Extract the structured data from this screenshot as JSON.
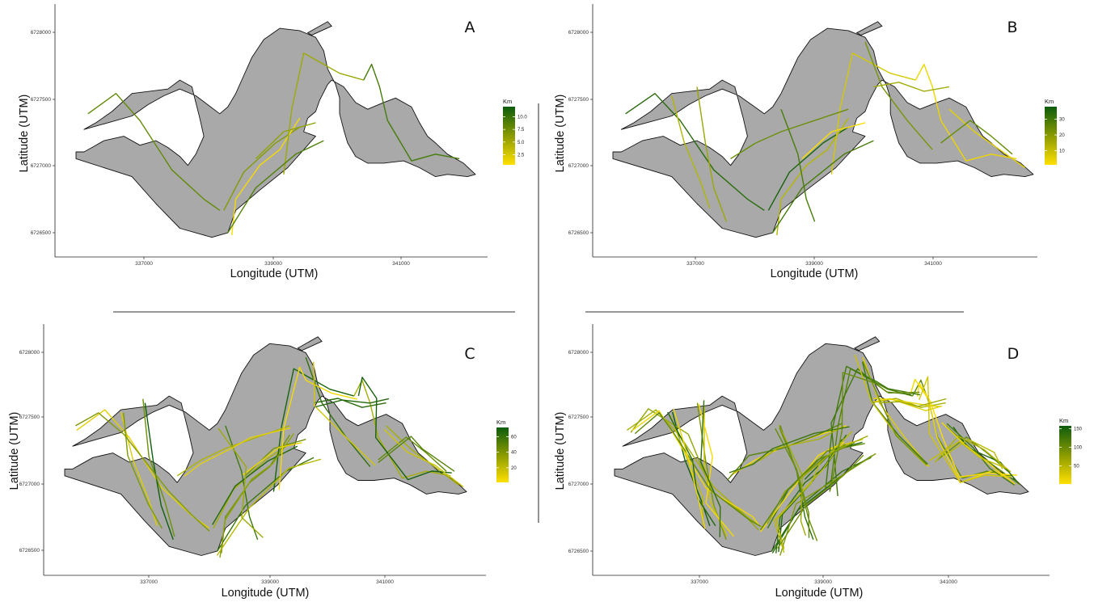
{
  "chart_data": [
    {
      "type": "line",
      "panel_label": "A",
      "xlabel": "Longitude (UTM)",
      "ylabel": "Latitude (UTM)",
      "x_ticks": [
        337000,
        339000,
        341000
      ],
      "y_ticks": [
        6726500,
        6727000,
        6727500,
        6728000
      ],
      "xlim": [
        335500,
        343600
      ],
      "ylim": [
        6726300,
        6728250
      ],
      "grid": false,
      "legend_position": "right",
      "legend": {
        "title": "Km",
        "ticks": [
          2.5,
          5.0,
          7.5,
          10.0
        ],
        "labels": [
          "2.5",
          "5.0",
          "7.5",
          "10.0"
        ],
        "min": 0.5,
        "max": 12.0
      },
      "color_low": "#ffe000",
      "color_high": "#0d5c0d"
    },
    {
      "type": "line",
      "panel_label": "B",
      "xlabel": "Longitude (UTM)",
      "ylabel": "Latitude (UTM)",
      "x_ticks": [
        337000,
        339000,
        341000
      ],
      "y_ticks": [
        6726500,
        6727000,
        6727500,
        6728000
      ],
      "xlim": [
        335500,
        343600
      ],
      "ylim": [
        6726300,
        6728250
      ],
      "grid": false,
      "legend_position": "right",
      "legend": {
        "title": "Km",
        "ticks": [
          10,
          20,
          30
        ],
        "labels": [
          "10",
          "20",
          "30"
        ],
        "min": 1,
        "max": 38
      },
      "color_low": "#ffe000",
      "color_high": "#0d5c0d"
    },
    {
      "type": "line",
      "panel_label": "C",
      "xlabel": "Longitude (UTM)",
      "ylabel": "Latitude (UTM)",
      "x_ticks": [
        337000,
        339000,
        341000
      ],
      "y_ticks": [
        6726500,
        6727000,
        6727500,
        6728000
      ],
      "xlim": [
        335500,
        343600
      ],
      "ylim": [
        6726300,
        6728250
      ],
      "grid": false,
      "legend_position": "right",
      "legend": {
        "title": "Km",
        "ticks": [
          20,
          40,
          60
        ],
        "labels": [
          "20",
          "40",
          "60"
        ],
        "min": 1,
        "max": 72
      },
      "color_low": "#ffe000",
      "color_high": "#0d5c0d"
    },
    {
      "type": "line",
      "panel_label": "D",
      "xlabel": "Longitude (UTM)",
      "ylabel": "Latitude (UTM)",
      "x_ticks": [
        337000,
        339000,
        341000
      ],
      "y_ticks": [
        6726500,
        6727000,
        6727500,
        6728000
      ],
      "xlim": [
        335500,
        343600
      ],
      "ylim": [
        6726300,
        6728250
      ],
      "grid": false,
      "legend_position": "right",
      "legend": {
        "title": "Km",
        "ticks": [
          50,
          100,
          150
        ],
        "labels": [
          "50",
          "100",
          "150"
        ],
        "min": 1,
        "max": 158
      },
      "color_low": "#ffe000",
      "color_high": "#0d5c0d"
    }
  ]
}
